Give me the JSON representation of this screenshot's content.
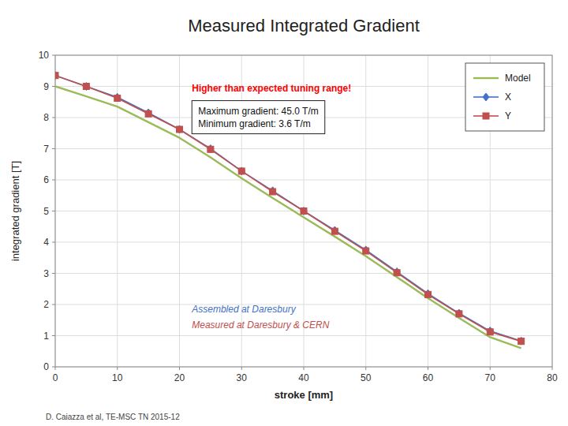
{
  "chart_data": {
    "type": "line",
    "title": "Measured Integrated Gradient",
    "x_label": "stroke [mm]",
    "y_label": "integrated gradient [T]",
    "x": [
      0,
      5,
      10,
      15,
      20,
      25,
      30,
      35,
      40,
      45,
      50,
      55,
      60,
      65,
      70,
      75
    ],
    "series": [
      {
        "name": "Model",
        "color": "#9BBB59",
        "values": [
          9.0,
          8.68,
          8.35,
          7.85,
          7.35,
          6.72,
          6.05,
          5.42,
          4.8,
          4.18,
          3.55,
          2.88,
          2.2,
          1.57,
          0.95,
          0.6
        ]
      },
      {
        "name": "X",
        "color": "#4472C4",
        "marker": "diamond",
        "values": [
          9.35,
          9.0,
          8.65,
          8.15,
          7.62,
          7.0,
          6.28,
          5.65,
          5.0,
          4.38,
          3.75,
          3.05,
          2.35,
          1.72,
          1.15,
          0.83
        ]
      },
      {
        "name": "Y",
        "color": "#C0504D",
        "marker": "square",
        "values": [
          9.35,
          9.0,
          8.62,
          8.12,
          7.62,
          6.98,
          6.28,
          5.62,
          5.0,
          4.35,
          3.72,
          3.02,
          2.32,
          1.7,
          1.12,
          0.82
        ]
      }
    ],
    "xlim": [
      0,
      80
    ],
    "ylim": [
      0,
      10
    ],
    "xticks": [
      0,
      10,
      20,
      30,
      40,
      50,
      60,
      70,
      80
    ],
    "yticks": [
      0,
      1,
      2,
      3,
      4,
      5,
      6,
      7,
      8,
      9,
      10
    ],
    "grid": true,
    "legend": "upper right",
    "annotations": [
      {
        "text": "Higher than expected tuning range!",
        "color": "#FF0000"
      },
      {
        "lines": [
          "Maximum gradient: 45.0 T/m",
          "Minimum gradient: 3.6 T/m"
        ]
      },
      {
        "text": "Assembled at Daresbury",
        "color": "#4472C4"
      },
      {
        "text": "Measured at Daresbury & CERN",
        "color": "#C0504D"
      }
    ],
    "footnote": "D. Caiazza et al, TE-MSC TN 2015-12"
  }
}
